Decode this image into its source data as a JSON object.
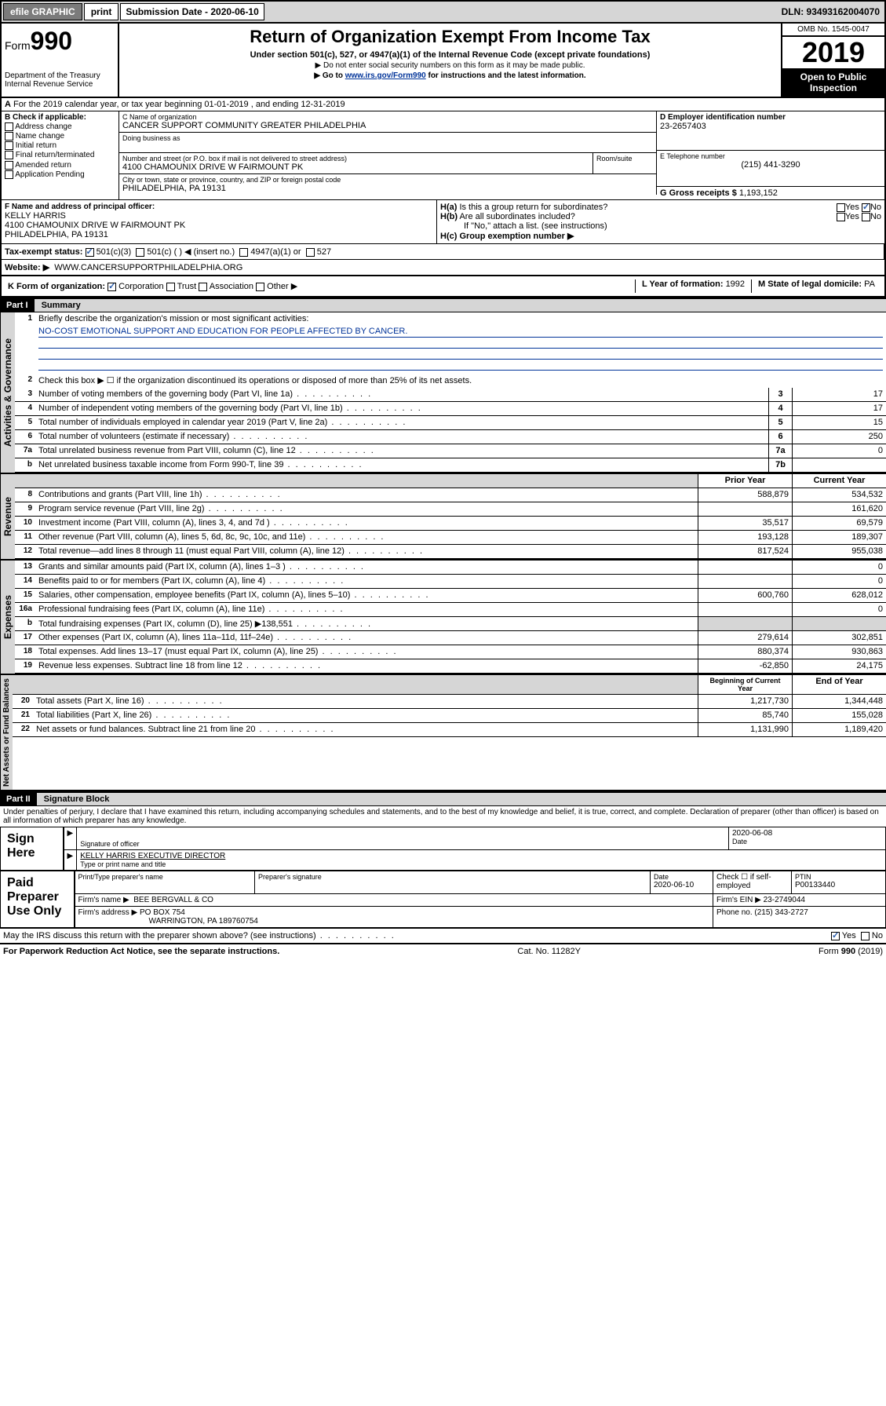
{
  "topbar": {
    "efile": "efile GRAPHIC",
    "print": "print",
    "submission_label": "Submission Date - 2020-06-10",
    "dln": "DLN: 93493162004070"
  },
  "header": {
    "form_prefix": "Form",
    "form_number": "990",
    "dept": "Department of the Treasury",
    "irs": "Internal Revenue Service",
    "title": "Return of Organization Exempt From Income Tax",
    "subtitle": "Under section 501(c), 527, or 4947(a)(1) of the Internal Revenue Code (except private foundations)",
    "note1": "▶ Do not enter social security numbers on this form as it may be made public.",
    "note2_pre": "▶ Go to ",
    "note2_link": "www.irs.gov/Form990",
    "note2_post": " for instructions and the latest information.",
    "omb": "OMB No. 1545-0047",
    "year": "2019",
    "inspect": "Open to Public Inspection"
  },
  "row_a": "For the 2019 calendar year, or tax year beginning 01-01-2019   , and ending 12-31-2019",
  "section_b": {
    "check_label": "B Check if applicable:",
    "checks": [
      "Address change",
      "Name change",
      "Initial return",
      "Final return/terminated",
      "Amended return",
      "Application Pending"
    ],
    "c_label": "C Name of organization",
    "c_name": "CANCER SUPPORT COMMUNITY GREATER PHILADELPHIA",
    "dba_label": "Doing business as",
    "addr_label": "Number and street (or P.O. box if mail is not delivered to street address)",
    "room_label": "Room/suite",
    "addr": "4100 CHAMOUNIX DRIVE W FAIRMOUNT PK",
    "city_label": "City or town, state or province, country, and ZIP or foreign postal code",
    "city": "PHILADELPHIA, PA  19131",
    "d_label": "D Employer identification number",
    "d_val": "23-2657403",
    "e_label": "E Telephone number",
    "e_val": "(215) 441-3290",
    "g_label": "G Gross receipts $",
    "g_val": "1,193,152"
  },
  "section_f": {
    "f_label": "F Name and address of principal officer:",
    "f_name": "KELLY HARRIS",
    "f_addr1": "4100 CHAMOUNIX DRIVE W FAIRMOUNT PK",
    "f_addr2": "PHILADELPHIA, PA  19131",
    "ha_label": "H(a)  Is this a group return for subordinates?",
    "hb_label": "H(b)  Are all subordinates included?",
    "hb_note": "If \"No,\" attach a list. (see instructions)",
    "hc_label": "H(c)  Group exemption number ▶"
  },
  "tax_status": {
    "label": "Tax-exempt status:",
    "opts": [
      "501(c)(3)",
      "501(c) (   ) ◀ (insert no.)",
      "4947(a)(1) or",
      "527"
    ]
  },
  "website": {
    "label": "Website: ▶",
    "val": "WWW.CANCERSUPPORTPHILADELPHIA.ORG"
  },
  "row_k": {
    "label": "K Form of organization:",
    "opts": [
      "Corporation",
      "Trust",
      "Association",
      "Other ▶"
    ],
    "l_label": "L Year of formation:",
    "l_val": "1992",
    "m_label": "M State of legal domicile:",
    "m_val": "PA"
  },
  "part1": {
    "header": "Part I",
    "title": "Summary",
    "q1": "Briefly describe the organization's mission or most significant activities:",
    "mission": "NO-COST EMOTIONAL SUPPORT AND EDUCATION FOR PEOPLE AFFECTED BY CANCER.",
    "q2": "Check this box ▶ ☐ if the organization discontinued its operations or disposed of more than 25% of its net assets.",
    "vlabel_gov": "Activities & Governance",
    "vlabel_rev": "Revenue",
    "vlabel_exp": "Expenses",
    "vlabel_net": "Net Assets or Fund Balances",
    "lines_gov": [
      {
        "n": "3",
        "d": "Number of voting members of the governing body (Part VI, line 1a)",
        "box": "3",
        "v": "17"
      },
      {
        "n": "4",
        "d": "Number of independent voting members of the governing body (Part VI, line 1b)",
        "box": "4",
        "v": "17"
      },
      {
        "n": "5",
        "d": "Total number of individuals employed in calendar year 2019 (Part V, line 2a)",
        "box": "5",
        "v": "15"
      },
      {
        "n": "6",
        "d": "Total number of volunteers (estimate if necessary)",
        "box": "6",
        "v": "250"
      },
      {
        "n": "7a",
        "d": "Total unrelated business revenue from Part VIII, column (C), line 12",
        "box": "7a",
        "v": "0"
      },
      {
        "n": "b",
        "d": "Net unrelated business taxable income from Form 990-T, line 39",
        "box": "7b",
        "v": ""
      }
    ],
    "col_prior": "Prior Year",
    "col_current": "Current Year",
    "lines_rev": [
      {
        "n": "8",
        "d": "Contributions and grants (Part VIII, line 1h)",
        "p": "588,879",
        "c": "534,532"
      },
      {
        "n": "9",
        "d": "Program service revenue (Part VIII, line 2g)",
        "p": "",
        "c": "161,620"
      },
      {
        "n": "10",
        "d": "Investment income (Part VIII, column (A), lines 3, 4, and 7d )",
        "p": "35,517",
        "c": "69,579"
      },
      {
        "n": "11",
        "d": "Other revenue (Part VIII, column (A), lines 5, 6d, 8c, 9c, 10c, and 11e)",
        "p": "193,128",
        "c": "189,307"
      },
      {
        "n": "12",
        "d": "Total revenue—add lines 8 through 11 (must equal Part VIII, column (A), line 12)",
        "p": "817,524",
        "c": "955,038"
      }
    ],
    "lines_exp": [
      {
        "n": "13",
        "d": "Grants and similar amounts paid (Part IX, column (A), lines 1–3 )",
        "p": "",
        "c": "0"
      },
      {
        "n": "14",
        "d": "Benefits paid to or for members (Part IX, column (A), line 4)",
        "p": "",
        "c": "0"
      },
      {
        "n": "15",
        "d": "Salaries, other compensation, employee benefits (Part IX, column (A), lines 5–10)",
        "p": "600,760",
        "c": "628,012"
      },
      {
        "n": "16a",
        "d": "Professional fundraising fees (Part IX, column (A), line 11e)",
        "p": "",
        "c": "0"
      },
      {
        "n": "b",
        "d": "Total fundraising expenses (Part IX, column (D), line 25) ▶138,551",
        "p": "shaded",
        "c": "shaded"
      },
      {
        "n": "17",
        "d": "Other expenses (Part IX, column (A), lines 11a–11d, 11f–24e)",
        "p": "279,614",
        "c": "302,851"
      },
      {
        "n": "18",
        "d": "Total expenses. Add lines 13–17 (must equal Part IX, column (A), line 25)",
        "p": "880,374",
        "c": "930,863"
      },
      {
        "n": "19",
        "d": "Revenue less expenses. Subtract line 18 from line 12",
        "p": "-62,850",
        "c": "24,175"
      }
    ],
    "col_begin": "Beginning of Current Year",
    "col_end": "End of Year",
    "lines_net": [
      {
        "n": "20",
        "d": "Total assets (Part X, line 16)",
        "p": "1,217,730",
        "c": "1,344,448"
      },
      {
        "n": "21",
        "d": "Total liabilities (Part X, line 26)",
        "p": "85,740",
        "c": "155,028"
      },
      {
        "n": "22",
        "d": "Net assets or fund balances. Subtract line 21 from line 20",
        "p": "1,131,990",
        "c": "1,189,420"
      }
    ]
  },
  "part2": {
    "header": "Part II",
    "title": "Signature Block",
    "declaration": "Under penalties of perjury, I declare that I have examined this return, including accompanying schedules and statements, and to the best of my knowledge and belief, it is true, correct, and complete. Declaration of preparer (other than officer) is based on all information of which preparer has any knowledge.",
    "sign_here": "Sign Here",
    "sig_officer": "Signature of officer",
    "sig_date": "2020-06-08",
    "date_label": "Date",
    "officer_name": "KELLY HARRIS  EXECUTIVE DIRECTOR",
    "type_name": "Type or print name and title",
    "paid": "Paid Preparer Use Only",
    "prep_name_label": "Print/Type preparer's name",
    "prep_sig_label": "Preparer's signature",
    "prep_date_label": "Date",
    "prep_date": "2020-06-10",
    "check_if": "Check ☐ if self-employed",
    "ptin_label": "PTIN",
    "ptin": "P00133440",
    "firm_name_label": "Firm's name   ▶",
    "firm_name": "BEE BERGVALL & CO",
    "firm_ein_label": "Firm's EIN ▶",
    "firm_ein": "23-2749044",
    "firm_addr_label": "Firm's address ▶",
    "firm_addr1": "PO BOX 754",
    "firm_addr2": "WARRINGTON, PA  189760754",
    "phone_label": "Phone no.",
    "phone": "(215) 343-2727",
    "discuss": "May the IRS discuss this return with the preparer shown above? (see instructions)",
    "paperwork": "For Paperwork Reduction Act Notice, see the separate instructions.",
    "cat": "Cat. No. 11282Y",
    "form_footer": "Form 990 (2019)"
  }
}
